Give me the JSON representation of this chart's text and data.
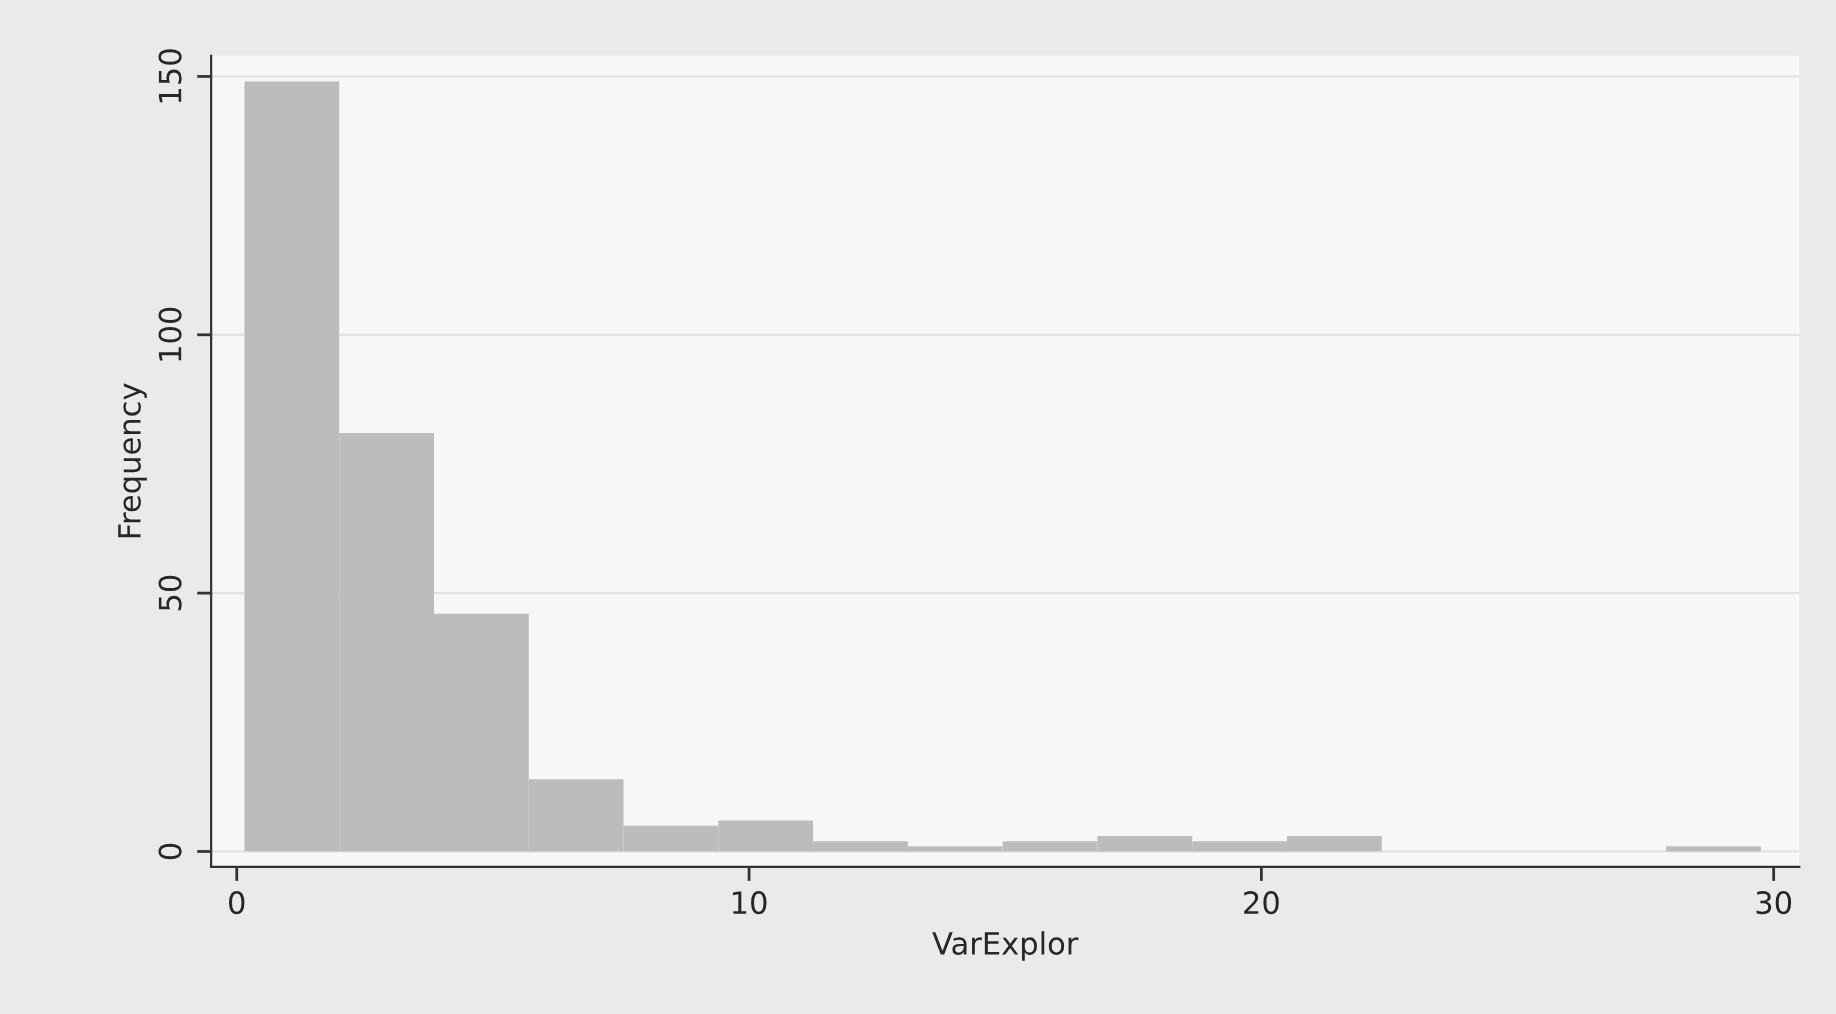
{
  "chart_data": {
    "type": "histogram",
    "xlabel": "VarExplor",
    "ylabel": "Frequency",
    "bins": [
      0.15,
      2.0,
      3.85,
      5.7,
      7.55,
      9.4,
      11.25,
      13.1,
      14.95,
      16.8,
      18.65,
      20.5,
      22.35,
      24.2,
      26.05,
      27.9,
      29.75
    ],
    "values": [
      149,
      81,
      46,
      14,
      5,
      6,
      2,
      1,
      2,
      3,
      2,
      3,
      0,
      0,
      0,
      1
    ],
    "color": "#bcbcbc",
    "xlim": [
      -0.5,
      30.5
    ],
    "xticks": [
      0,
      10,
      20,
      30
    ],
    "ylim": [
      -3,
      154
    ],
    "yticks": [
      0,
      50,
      100,
      150
    ],
    "grid": "y"
  }
}
